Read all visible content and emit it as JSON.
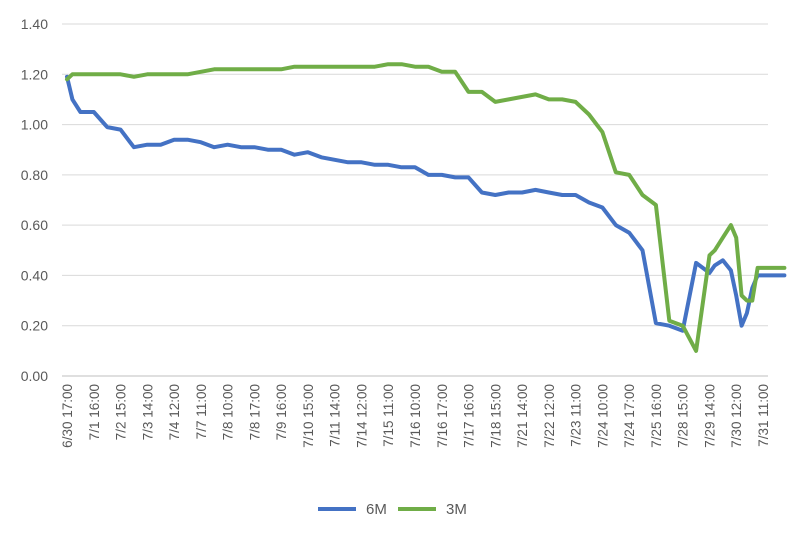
{
  "chart_data": {
    "type": "line",
    "title": "",
    "xlabel": "",
    "ylabel": "",
    "ylim": [
      0,
      1.4
    ],
    "yticks": [
      "0.00",
      "0.20",
      "0.40",
      "0.60",
      "0.80",
      "1.00",
      "1.20",
      "1.40"
    ],
    "grid": "horizontal",
    "legend_position": "bottom",
    "x_tick_labels": [
      "6/30 17:00",
      "7/1 16:00",
      "7/2 15:00",
      "7/3 14:00",
      "7/4 12:00",
      "7/7 11:00",
      "7/8 10:00",
      "7/8 17:00",
      "7/9 16:00",
      "7/10 15:00",
      "7/11 14:00",
      "7/14 12:00",
      "7/15 11:00",
      "7/16 10:00",
      "7/16 17:00",
      "7/17 16:00",
      "7/18 15:00",
      "7/21 14:00",
      "7/22 12:00",
      "7/23 11:00",
      "7/24 10:00",
      "7/24 17:00",
      "7/25 16:00",
      "7/28 15:00",
      "7/29 14:00",
      "7/30 12:00",
      "7/31 11:00"
    ],
    "x": [
      0,
      0.2,
      0.5,
      1,
      1.5,
      2,
      2.5,
      3,
      3.5,
      4,
      4.5,
      5,
      5.5,
      6,
      6.5,
      7,
      7.5,
      8,
      8.5,
      9,
      9.5,
      10,
      10.5,
      11,
      11.5,
      12,
      12.5,
      13,
      13.5,
      14,
      14.5,
      15,
      15.5,
      16,
      16.5,
      17,
      17.5,
      18,
      18.5,
      19,
      19.5,
      20,
      20.5,
      21,
      21.5,
      22,
      22.5,
      23,
      23.5,
      24,
      24.2,
      24.5,
      24.8,
      25,
      25.2,
      25.4,
      25.6,
      25.8,
      26,
      26.2,
      26.4,
      26.6,
      26.8
    ],
    "series": [
      {
        "name": "6M",
        "color": "#4472C4",
        "values": [
          1.19,
          1.1,
          1.05,
          1.05,
          0.99,
          0.98,
          0.91,
          0.92,
          0.92,
          0.94,
          0.94,
          0.93,
          0.91,
          0.92,
          0.91,
          0.91,
          0.9,
          0.9,
          0.88,
          0.89,
          0.87,
          0.86,
          0.85,
          0.85,
          0.84,
          0.84,
          0.83,
          0.83,
          0.8,
          0.8,
          0.79,
          0.79,
          0.73,
          0.72,
          0.73,
          0.73,
          0.74,
          0.73,
          0.72,
          0.72,
          0.69,
          0.67,
          0.6,
          0.57,
          0.5,
          0.21,
          0.2,
          0.18,
          0.45,
          0.41,
          0.44,
          0.46,
          0.42,
          0.32,
          0.2,
          0.25,
          0.35,
          0.4,
          0.4,
          0.4,
          0.4,
          0.4,
          0.4
        ]
      },
      {
        "name": "3M",
        "color": "#70AD47",
        "values": [
          1.18,
          1.2,
          1.2,
          1.2,
          1.2,
          1.2,
          1.19,
          1.2,
          1.2,
          1.2,
          1.2,
          1.21,
          1.22,
          1.22,
          1.22,
          1.22,
          1.22,
          1.22,
          1.23,
          1.23,
          1.23,
          1.23,
          1.23,
          1.23,
          1.23,
          1.24,
          1.24,
          1.23,
          1.23,
          1.21,
          1.21,
          1.13,
          1.13,
          1.09,
          1.1,
          1.11,
          1.12,
          1.1,
          1.1,
          1.09,
          1.04,
          0.97,
          0.81,
          0.8,
          0.72,
          0.68,
          0.22,
          0.2,
          0.1,
          0.48,
          0.5,
          0.55,
          0.6,
          0.55,
          0.32,
          0.3,
          0.3,
          0.43,
          0.43,
          0.43,
          0.43,
          0.43,
          0.43
        ]
      }
    ]
  }
}
